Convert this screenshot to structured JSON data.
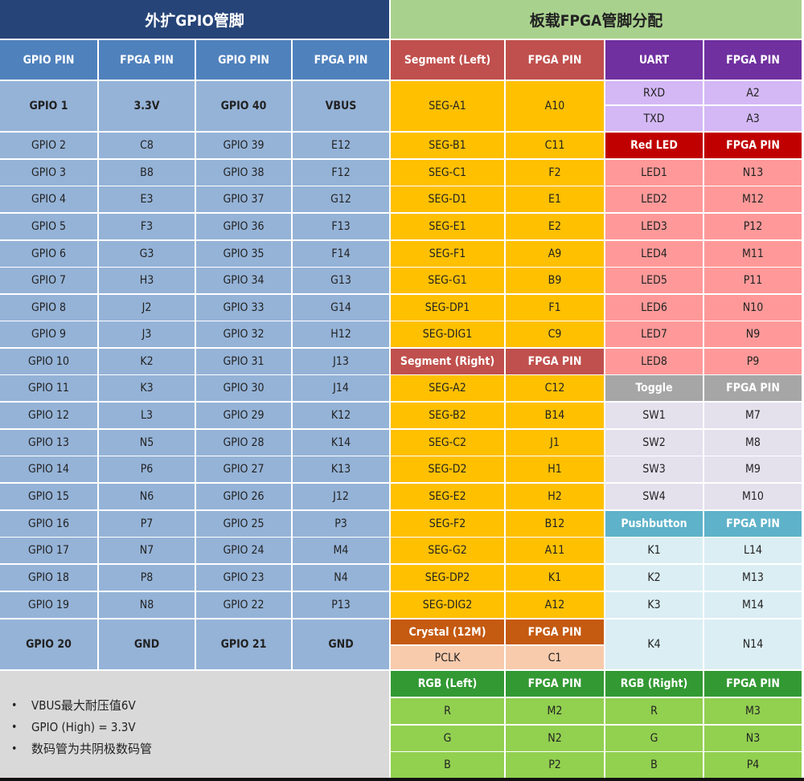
{
  "colors": {
    "gpio_title_bg": "#264478",
    "gpio_header_bg": "#4f81bd",
    "gpio_cell_bg": "#95b3d7",
    "board_title_bg": "#a9d18e",
    "segment_header_bg": "#c0504d",
    "segment_cell_bg": "#ffc000",
    "uart_header_bg": "#7030a0",
    "uart_cell_bg": "#d4b8f5",
    "red_led_header_bg": "#c00000",
    "red_led_cell_bg": "#ff9999",
    "toggle_header_bg": "#a6a6a6",
    "toggle_cell_bg": "#e4e0ec",
    "pushbutton_header_bg": "#5eb2c9",
    "pushbutton_cell_bg": "#dbeef4",
    "crystal_header_bg": "#c55a11",
    "crystal_cell_bg": "#f8cbad",
    "rgb_header_bg": "#339933",
    "rgb_cell_bg": "#92d050",
    "notes_bg": "#d9d9d9"
  },
  "gpio": {
    "title": "外扩GPIO管脚",
    "headers": [
      "GPIO PIN",
      "FPGA PIN",
      "GPIO PIN",
      "FPGA PIN"
    ],
    "first_row": [
      "GPIO 1",
      "3.3V",
      "GPIO 40",
      "VBUS"
    ],
    "rows": [
      [
        "GPIO 2",
        "C8",
        "GPIO 39",
        "E12"
      ],
      [
        "GPIO 3",
        "B8",
        "GPIO 38",
        "F12"
      ],
      [
        "GPIO 4",
        "E3",
        "GPIO 37",
        "G12"
      ],
      [
        "GPIO 5",
        "F3",
        "GPIO 36",
        "F13"
      ],
      [
        "GPIO 6",
        "G3",
        "GPIO 35",
        "F14"
      ],
      [
        "GPIO 7",
        "H3",
        "GPIO 34",
        "G13"
      ],
      [
        "GPIO 8",
        "J2",
        "GPIO 33",
        "G14"
      ],
      [
        "GPIO 9",
        "J3",
        "GPIO 32",
        "H12"
      ],
      [
        "GPIO 10",
        "K2",
        "GPIO 31",
        "J13"
      ],
      [
        "GPIO 11",
        "K3",
        "GPIO 30",
        "J14"
      ],
      [
        "GPIO 12",
        "L3",
        "GPIO 29",
        "K12"
      ],
      [
        "GPIO 13",
        "N5",
        "GPIO 28",
        "K14"
      ],
      [
        "GPIO 14",
        "P6",
        "GPIO 27",
        "K13"
      ],
      [
        "GPIO 15",
        "N6",
        "GPIO 26",
        "J12"
      ],
      [
        "GPIO 16",
        "P7",
        "GPIO 25",
        "P3"
      ],
      [
        "GPIO 17",
        "N7",
        "GPIO 24",
        "M4"
      ],
      [
        "GPIO 18",
        "P8",
        "GPIO 23",
        "N4"
      ],
      [
        "GPIO 19",
        "N8",
        "GPIO 22",
        "P13"
      ]
    ],
    "last_row": [
      "GPIO 20",
      "GND",
      "GPIO 21",
      "GND"
    ]
  },
  "notes": [
    "VBUS最大耐压值6V",
    "GPIO (High) = 3.3V",
    "数码管为共阴极数码管"
  ],
  "board": {
    "title": "板载FPGA管脚分配",
    "segment_left": {
      "headers": [
        "Segment (Left)",
        "FPGA PIN"
      ],
      "rows": [
        [
          "SEG-A1",
          "A10"
        ],
        [
          "SEG-B1",
          "C11"
        ],
        [
          "SEG-C1",
          "F2"
        ],
        [
          "SEG-D1",
          "E1"
        ],
        [
          "SEG-E1",
          "E2"
        ],
        [
          "SEG-F1",
          "A9"
        ],
        [
          "SEG-G1",
          "B9"
        ],
        [
          "SEG-DP1",
          "F1"
        ],
        [
          "SEG-DIG1",
          "C9"
        ]
      ]
    },
    "segment_right": {
      "headers": [
        "Segment (Right)",
        "FPGA PIN"
      ],
      "rows": [
        [
          "SEG-A2",
          "C12"
        ],
        [
          "SEG-B2",
          "B14"
        ],
        [
          "SEG-C2",
          "J1"
        ],
        [
          "SEG-D2",
          "H1"
        ],
        [
          "SEG-E2",
          "H2"
        ],
        [
          "SEG-F2",
          "B12"
        ],
        [
          "SEG-G2",
          "A11"
        ],
        [
          "SEG-DP2",
          "K1"
        ],
        [
          "SEG-DIG2",
          "A12"
        ]
      ]
    },
    "crystal": {
      "headers": [
        "Crystal (12M)",
        "FPGA PIN"
      ],
      "rows": [
        [
          "PCLK",
          "C1"
        ]
      ]
    },
    "uart": {
      "headers": [
        "UART",
        "FPGA PIN"
      ],
      "rows": [
        [
          "RXD",
          "A2"
        ],
        [
          "TXD",
          "A3"
        ]
      ]
    },
    "red_led": {
      "headers": [
        "Red LED",
        "FPGA PIN"
      ],
      "rows": [
        [
          "LED1",
          "N13"
        ],
        [
          "LED2",
          "M12"
        ],
        [
          "LED3",
          "P12"
        ],
        [
          "LED4",
          "M11"
        ],
        [
          "LED5",
          "P11"
        ],
        [
          "LED6",
          "N10"
        ],
        [
          "LED7",
          "N9"
        ],
        [
          "LED8",
          "P9"
        ]
      ]
    },
    "toggle": {
      "headers": [
        "Toggle",
        "FPGA PIN"
      ],
      "rows": [
        [
          "SW1",
          "M7"
        ],
        [
          "SW2",
          "M8"
        ],
        [
          "SW3",
          "M9"
        ],
        [
          "SW4",
          "M10"
        ]
      ]
    },
    "pushbutton": {
      "headers": [
        "Pushbutton",
        "FPGA PIN"
      ],
      "rows": [
        [
          "K1",
          "L14"
        ],
        [
          "K2",
          "M13"
        ],
        [
          "K3",
          "M14"
        ],
        [
          "K4",
          "N14"
        ]
      ]
    },
    "rgb_left": {
      "headers": [
        "RGB (Left)",
        "FPGA PIN"
      ],
      "rows": [
        [
          "R",
          "M2"
        ],
        [
          "G",
          "N2"
        ],
        [
          "B",
          "P2"
        ]
      ]
    },
    "rgb_right": {
      "headers": [
        "RGB (Right)",
        "FPGA PIN"
      ],
      "rows": [
        [
          "R",
          "M3"
        ],
        [
          "G",
          "N3"
        ],
        [
          "B",
          "P4"
        ]
      ]
    }
  }
}
